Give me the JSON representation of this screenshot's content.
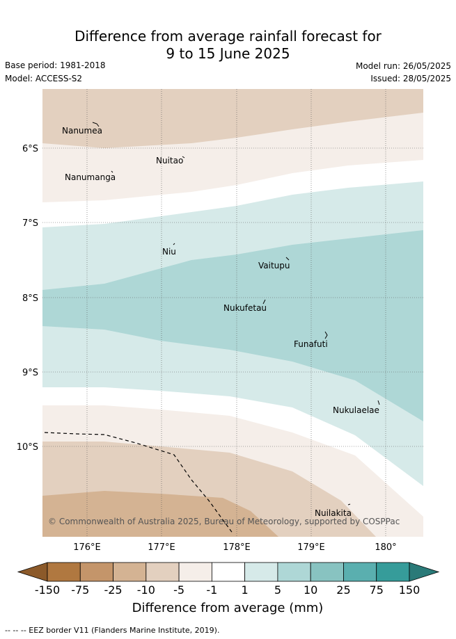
{
  "header": {
    "title_line1": "Difference from average rainfall forecast for",
    "title_line2": "9 to 15 June 2025",
    "base_period": "Base period: 1981-2018",
    "model": "Model: ACCESS-S2",
    "model_run": "Model run: 26/05/2025",
    "issued": "Issued: 28/05/2025"
  },
  "map": {
    "lat_labels": [
      "6°S",
      "7°S",
      "8°S",
      "9°S",
      "10°S"
    ],
    "lon_labels": [
      "176°E",
      "177°E",
      "178°E",
      "179°E",
      "180°"
    ],
    "places": {
      "nanumea": "Nanumea",
      "nuitao": "Nuitao",
      "nanumanga": "Nanumanga",
      "niu": "Niu",
      "vaitupu": "Vaitupu",
      "nukufetau": "Nukufetau",
      "funafuti": "Funafuti",
      "nukulaelae": "Nukulaelae",
      "nuilakita": "Nuilakita"
    },
    "copyright": "© Commonwealth of Australia 2025, Bureau of Meteorology, supported by COSPPac"
  },
  "colorbar": {
    "tick_labels": [
      "-150",
      "-75",
      "-25",
      "-10",
      "-5",
      "-1",
      "1",
      "5",
      "10",
      "25",
      "75",
      "150"
    ],
    "colors": [
      "#8c5a2a",
      "#b07840",
      "#c4956a",
      "#d4b393",
      "#e3d0bf",
      "#f5eee9",
      "#ffffff",
      "#d6eae9",
      "#aed7d6",
      "#88c3c1",
      "#5aafaf",
      "#369c9a",
      "#2a7a78"
    ],
    "label": "Difference from average (mm)"
  },
  "footer": {
    "legend_line": "-- -- -- EEZ border V11 (Flanders Marine Institute, 2019)."
  }
}
